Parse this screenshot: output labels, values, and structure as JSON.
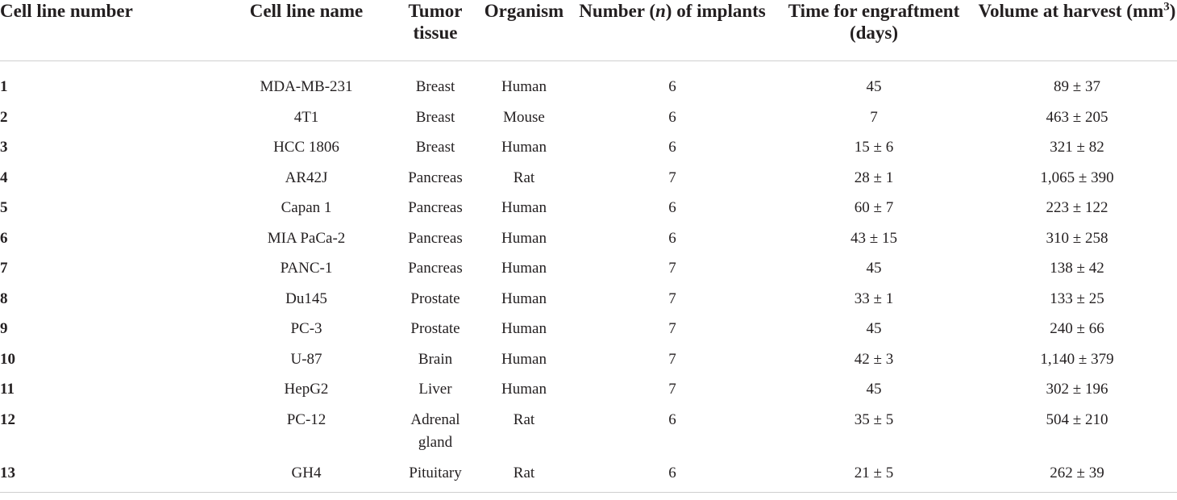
{
  "table": {
    "headers": {
      "cell_line_number": "Cell line number",
      "cell_line_name": "Cell line name",
      "tumor_tissue": "Tumor tissue",
      "organism": "Organism",
      "implants_prefix": "Number (",
      "implants_n": "n",
      "implants_suffix": ") of implants",
      "engraftment": "Time for engraftment (days)",
      "volume_prefix": "Volume at harvest (mm",
      "volume_sup": "3",
      "volume_suffix": ")"
    },
    "rows": [
      {
        "number": "1",
        "name": "MDA-MB-231",
        "tissue": "Breast",
        "organism": "Human",
        "implants": "6",
        "engraftment": "45",
        "volume": "89 ± 37"
      },
      {
        "number": "2",
        "name": "4T1",
        "tissue": "Breast",
        "organism": "Mouse",
        "implants": "6",
        "engraftment": "7",
        "volume": "463 ± 205"
      },
      {
        "number": "3",
        "name": "HCC 1806",
        "tissue": "Breast",
        "organism": "Human",
        "implants": "6",
        "engraftment": "15 ± 6",
        "volume": "321 ± 82"
      },
      {
        "number": "4",
        "name": "AR42J",
        "tissue": "Pancreas",
        "organism": "Rat",
        "implants": "7",
        "engraftment": "28 ± 1",
        "volume": "1,065 ± 390"
      },
      {
        "number": "5",
        "name": "Capan 1",
        "tissue": "Pancreas",
        "organism": "Human",
        "implants": "6",
        "engraftment": "60 ± 7",
        "volume": "223 ± 122"
      },
      {
        "number": "6",
        "name": "MIA PaCa-2",
        "tissue": "Pancreas",
        "organism": "Human",
        "implants": "6",
        "engraftment": "43 ± 15",
        "volume": "310 ± 258"
      },
      {
        "number": "7",
        "name": "PANC-1",
        "tissue": "Pancreas",
        "organism": "Human",
        "implants": "7",
        "engraftment": "45",
        "volume": "138 ± 42"
      },
      {
        "number": "8",
        "name": "Du145",
        "tissue": "Prostate",
        "organism": "Human",
        "implants": "7",
        "engraftment": "33 ± 1",
        "volume": "133 ± 25"
      },
      {
        "number": "9",
        "name": "PC-3",
        "tissue": "Prostate",
        "organism": "Human",
        "implants": "7",
        "engraftment": "45",
        "volume": "240 ± 66"
      },
      {
        "number": "10",
        "name": "U-87",
        "tissue": "Brain",
        "organism": "Human",
        "implants": "7",
        "engraftment": "42 ± 3",
        "volume": "1,140 ± 379"
      },
      {
        "number": "11",
        "name": "HepG2",
        "tissue": "Liver",
        "organism": "Human",
        "implants": "7",
        "engraftment": "45",
        "volume": "302 ± 196"
      },
      {
        "number": "12",
        "name": "PC-12",
        "tissue": "Adrenal gland",
        "organism": "Rat",
        "implants": "6",
        "engraftment": "35 ± 5",
        "volume": "504 ± 210"
      },
      {
        "number": "13",
        "name": "GH4",
        "tissue": "Pituitary",
        "organism": "Rat",
        "implants": "6",
        "engraftment": "21 ± 5",
        "volume": "262 ± 39"
      }
    ]
  }
}
